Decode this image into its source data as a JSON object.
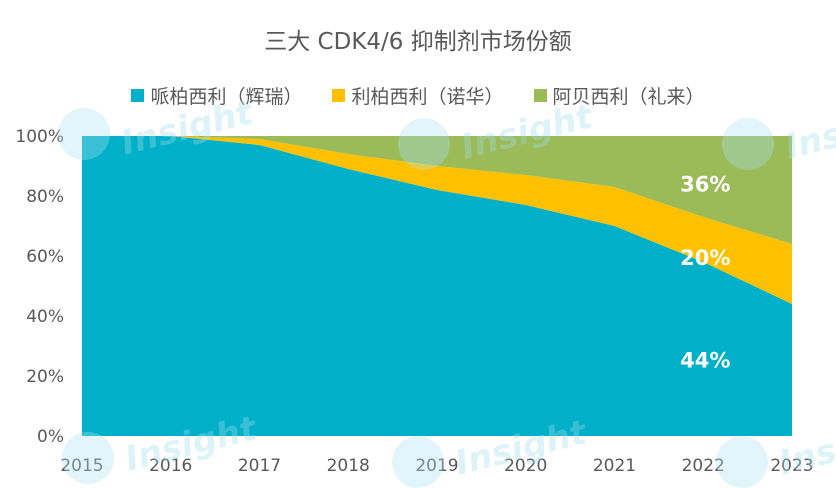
{
  "chart_data": {
    "type": "area",
    "stacked": true,
    "title": "三大 CDK4/6 抑制剂市场份额",
    "categories": [
      "2015",
      "2016",
      "2017",
      "2018",
      "2019",
      "2020",
      "2021",
      "2022",
      "2023"
    ],
    "ylim": [
      0,
      100
    ],
    "yticks": [
      "0%",
      "20%",
      "40%",
      "60%",
      "80%",
      "100%"
    ],
    "legend_position": "top",
    "grid": false,
    "series": [
      {
        "name": "哌柏西利（辉瑞）",
        "color": "#00B0C8",
        "values": [
          100,
          100,
          97,
          89,
          82,
          77,
          70,
          58,
          44
        ]
      },
      {
        "name": "利柏西利（诺华）",
        "color": "#FFC000",
        "values": [
          0,
          0,
          2,
          5,
          8,
          10,
          13,
          15,
          20
        ]
      },
      {
        "name": "阿贝西利（礼来）",
        "color": "#9BBB59",
        "values": [
          0,
          0,
          1,
          6,
          10,
          13,
          17,
          27,
          36
        ]
      }
    ],
    "annotations": [
      {
        "text": "44%",
        "series": 0,
        "category": "2022"
      },
      {
        "text": "20%",
        "series": 1,
        "category": "2022"
      },
      {
        "text": "36%",
        "series": 2,
        "category": "2022"
      }
    ]
  },
  "watermark": {
    "text": "Insight"
  }
}
